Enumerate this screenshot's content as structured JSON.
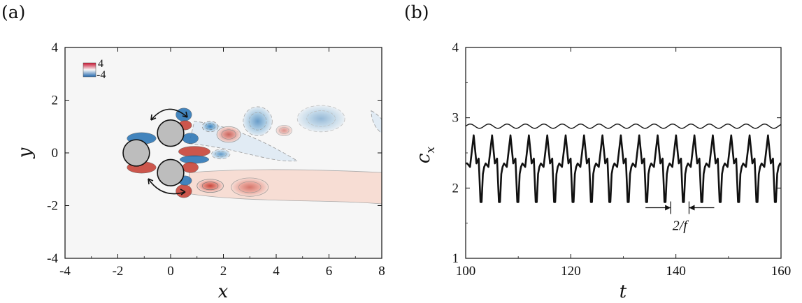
{
  "chart_data": [
    {
      "panel_label": "(a)",
      "type": "heatmap",
      "xlabel": "x",
      "ylabel": "y",
      "xlim": [
        -4,
        8
      ],
      "ylim": [
        -4,
        4
      ],
      "xticks": [
        "-4",
        "-2",
        "0",
        "2",
        "4",
        "6",
        "8"
      ],
      "yticks": [
        "-4",
        "-2",
        "0",
        "2",
        "4"
      ],
      "colorbar": {
        "max_label": "4",
        "min_label": "-4",
        "max": 4,
        "min": -4,
        "positive_color": "#c8102e",
        "negative_color": "#2166ac"
      },
      "cylinders": [
        {
          "x": -1.3,
          "y": 0.0,
          "r": 0.5
        },
        {
          "x": 0.0,
          "y": 0.75,
          "r": 0.5
        },
        {
          "x": 0.0,
          "y": -0.75,
          "r": 0.5
        }
      ],
      "vortices": [
        {
          "x": 3.3,
          "y": 1.2,
          "rx": 0.55,
          "ry": 0.55,
          "sign": -1,
          "level": 0.55
        },
        {
          "x": 5.7,
          "y": 1.3,
          "rx": 0.9,
          "ry": 0.5,
          "sign": -1,
          "level": 0.2
        },
        {
          "x": 2.2,
          "y": 0.7,
          "rx": 0.45,
          "ry": 0.3,
          "sign": 1,
          "level": 0.7
        },
        {
          "x": 1.5,
          "y": -1.25,
          "rx": 0.5,
          "ry": 0.25,
          "sign": 1,
          "level": 1.0
        },
        {
          "x": 3.0,
          "y": -1.3,
          "rx": 0.7,
          "ry": 0.35,
          "sign": 1,
          "level": 0.5
        },
        {
          "x": 1.9,
          "y": -0.05,
          "rx": 0.35,
          "ry": 0.18,
          "sign": -1,
          "level": 0.6
        },
        {
          "x": 1.5,
          "y": 1.0,
          "rx": 0.3,
          "ry": 0.2,
          "sign": -1,
          "level": 0.9
        },
        {
          "x": 4.3,
          "y": 0.85,
          "rx": 0.3,
          "ry": 0.2,
          "sign": 1,
          "level": 0.3
        }
      ]
    },
    {
      "panel_label": "(b)",
      "type": "line",
      "xlabel": "t",
      "ylabel": "c",
      "ylabel_sub": "x",
      "xlim": [
        100,
        160
      ],
      "ylim": [
        1,
        4
      ],
      "xticks": [
        "100",
        "120",
        "140",
        "160"
      ],
      "yticks": [
        "1",
        "2",
        "3",
        "4"
      ],
      "annotation": {
        "text": "2/f",
        "x_left": 139.0,
        "x_right": 142.5,
        "y": 1.72
      },
      "series": [
        {
          "style": "thin",
          "mean": 2.88,
          "amplitude": 0.03,
          "period": 3.5
        },
        {
          "style": "thick",
          "period": 3.5,
          "t0": 100.3,
          "cycle": [
            [
              0.0,
              2.35
            ],
            [
              0.15,
              2.3
            ],
            [
              0.35,
              2.75
            ],
            [
              0.5,
              2.35
            ],
            [
              0.62,
              2.42
            ],
            [
              0.72,
              1.8
            ],
            [
              0.78,
              1.8
            ],
            [
              0.85,
              2.2
            ],
            [
              0.92,
              2.3
            ],
            [
              1.0,
              2.35
            ]
          ]
        }
      ]
    }
  ]
}
